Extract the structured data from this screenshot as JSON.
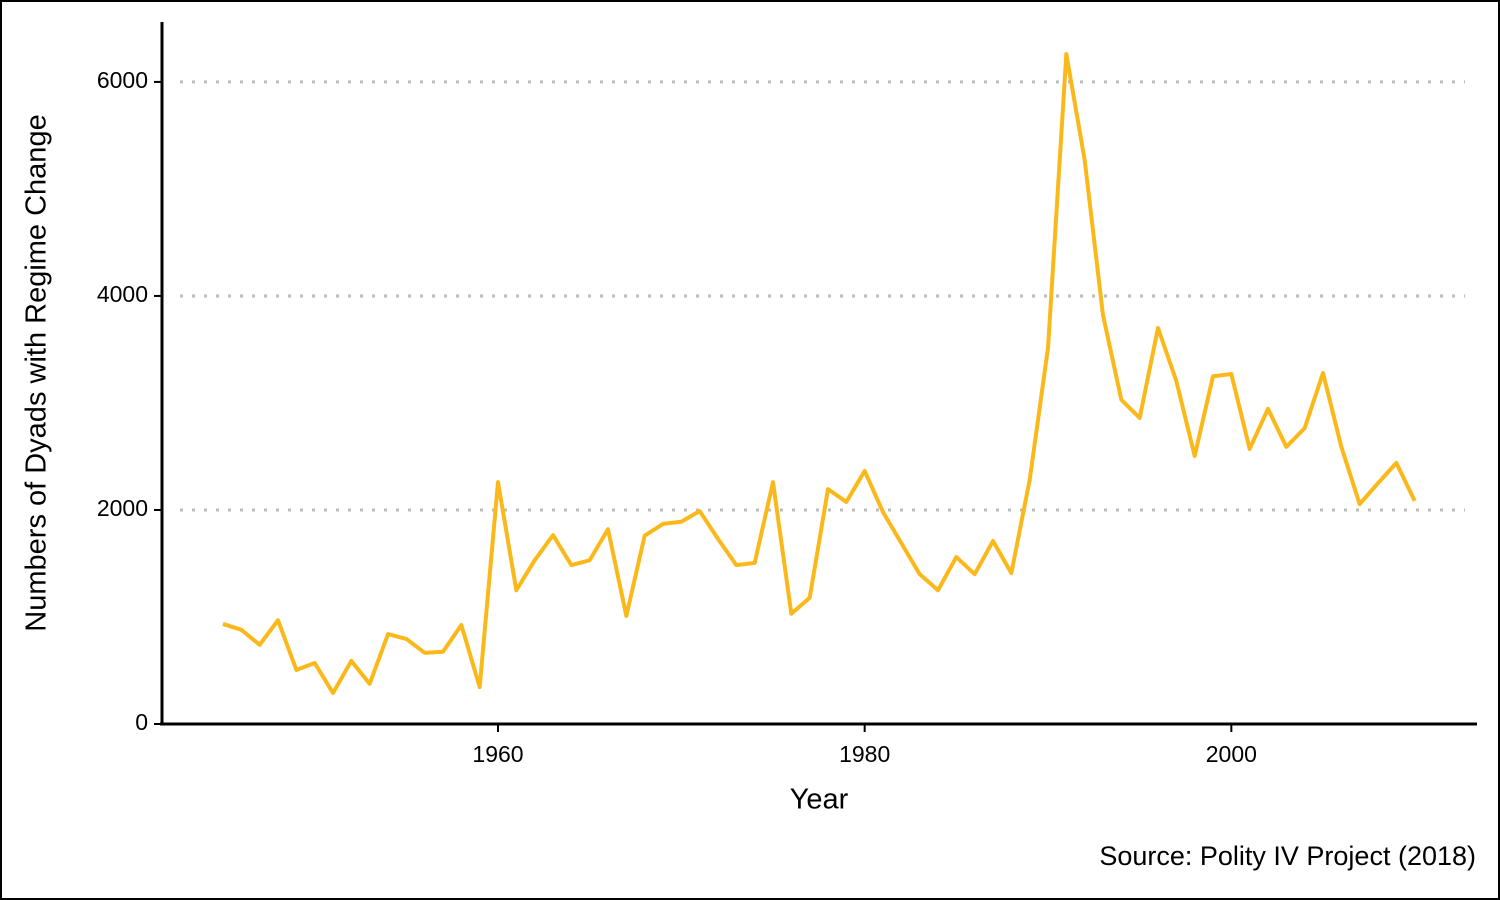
{
  "chart_data": {
    "type": "line",
    "x_label": "Year",
    "y_label": "Numbers of Dyads with Regime Change",
    "caption": "Source: Polity IV Project (2018)",
    "x": [
      1945,
      1946,
      1947,
      1948,
      1949,
      1950,
      1951,
      1952,
      1953,
      1954,
      1955,
      1956,
      1957,
      1958,
      1959,
      1960,
      1961,
      1962,
      1963,
      1964,
      1965,
      1966,
      1967,
      1968,
      1969,
      1970,
      1971,
      1972,
      1973,
      1974,
      1975,
      1976,
      1977,
      1978,
      1979,
      1980,
      1981,
      1982,
      1983,
      1984,
      1985,
      1986,
      1987,
      1988,
      1989,
      1990,
      1991,
      1992,
      1993,
      1994,
      1995,
      1996,
      1997,
      1998,
      1999,
      2000,
      2001,
      2002,
      2003,
      2004,
      2005,
      2006,
      2007,
      2008,
      2009,
      2010
    ],
    "values": [
      935,
      880,
      740,
      970,
      505,
      570,
      290,
      590,
      375,
      840,
      795,
      665,
      675,
      925,
      345,
      2260,
      1250,
      1530,
      1765,
      1485,
      1530,
      1820,
      1010,
      1760,
      1870,
      1890,
      1990,
      1730,
      1485,
      1505,
      2260,
      1030,
      1180,
      2195,
      2075,
      2365,
      1980,
      1690,
      1400,
      1250,
      1560,
      1400,
      1710,
      1410,
      2280,
      3515,
      6260,
      5270,
      3820,
      3030,
      2860,
      3700,
      3205,
      2505,
      3250,
      3270,
      2570,
      2945,
      2590,
      2765,
      3280,
      2590,
      2055,
      2250,
      2440,
      2085
    ],
    "color": "#fbb81a",
    "xlim": [
      1941.4,
      2013.4
    ],
    "xticks": [
      1960,
      1980,
      2000
    ],
    "ylim": [
      0,
      6560
    ],
    "yticks": [
      0,
      2000,
      4000,
      6000
    ],
    "grid": true
  }
}
